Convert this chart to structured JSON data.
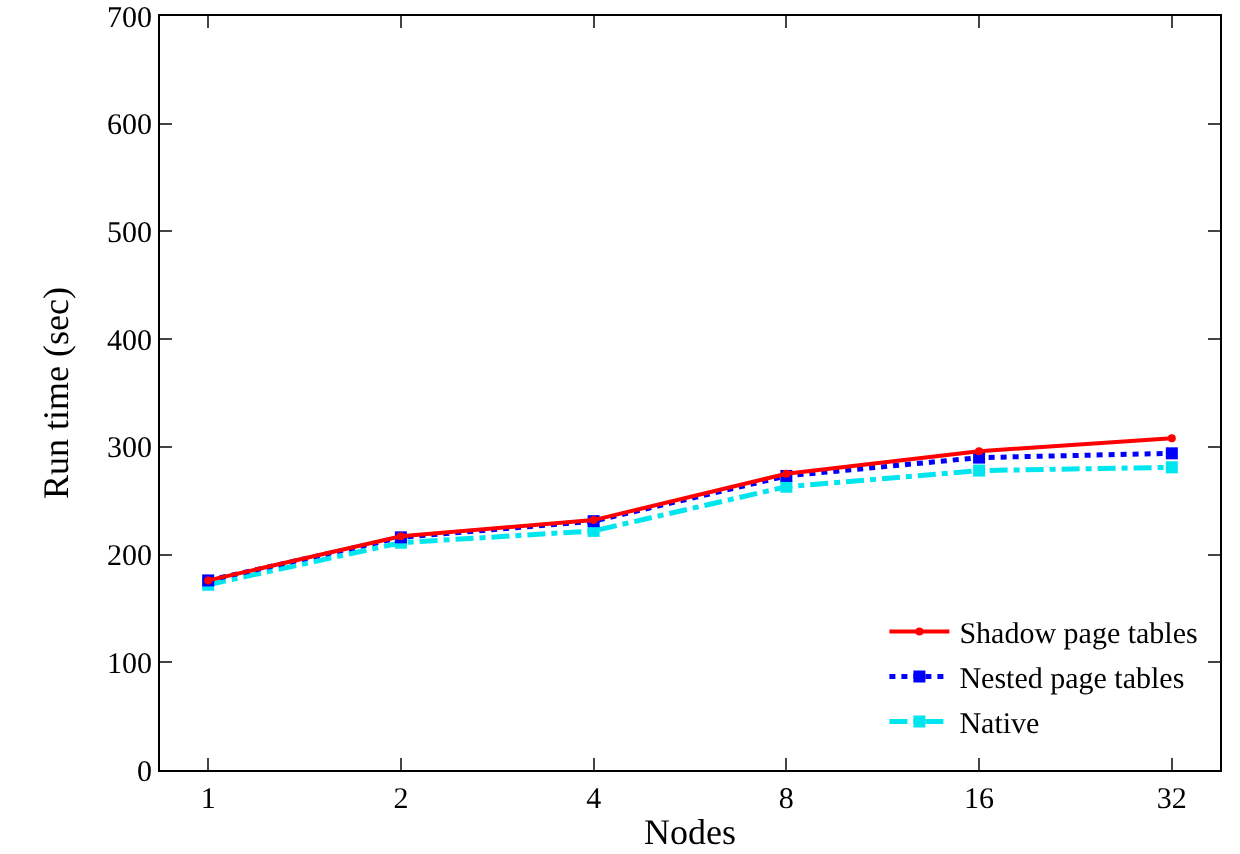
{
  "chart_data": {
    "type": "line",
    "xlabel": "Nodes",
    "ylabel": "Run time (sec)",
    "categories": [
      "1",
      "2",
      "4",
      "8",
      "16",
      "32"
    ],
    "ylim": [
      0,
      700
    ],
    "yticks": [
      0,
      100,
      200,
      300,
      400,
      500,
      600,
      700
    ],
    "grid": false,
    "legend": "bottom right",
    "series": [
      {
        "name": "Shadow page tables",
        "color": "#ff0000",
        "values": [
          176,
          217,
          232,
          275,
          296,
          308
        ],
        "marker": "circle",
        "line_style": "solid"
      },
      {
        "name": "Nested page tables",
        "color": "#0000ff",
        "values": [
          176,
          216,
          231,
          273,
          290,
          294
        ],
        "marker": "square",
        "line_style": "dotted"
      },
      {
        "name": "Native",
        "color": "#00e5ee",
        "values": [
          172,
          211,
          222,
          263,
          278,
          281
        ],
        "marker": "square",
        "line_style": "dashdot"
      }
    ]
  }
}
